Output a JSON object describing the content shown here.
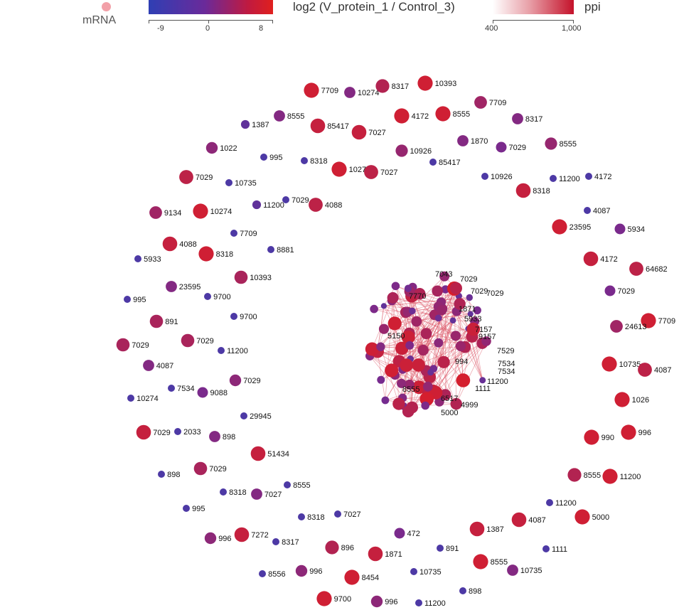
{
  "legend": {
    "mrna_label": "mRNA",
    "color_scale_title": "log2 (V_protein_1 / Control_3)",
    "color_ticks": [
      "-9",
      "0",
      "8"
    ],
    "ppi_title": "ppi",
    "ppi_ticks": [
      "400",
      "1,000"
    ]
  },
  "colors": {
    "low": "#3a3fb0",
    "mid": "#7a2a8c",
    "high": "#d81e2a",
    "edge": "#d94a5a"
  },
  "nodes": [
    {
      "id": "7709",
      "c": 0.95
    },
    {
      "id": "10274",
      "c": 0.55
    },
    {
      "id": "8317",
      "c": 0.8
    },
    {
      "id": "10393",
      "c": 0.95
    },
    {
      "id": "7709",
      "c": 0.7
    },
    {
      "id": "8317",
      "c": 0.55
    },
    {
      "id": "1387",
      "c": 0.3
    },
    {
      "id": "8555",
      "c": 0.55
    },
    {
      "id": "85417",
      "c": 0.9
    },
    {
      "id": "7027",
      "c": 0.9
    },
    {
      "id": "4172",
      "c": 0.95
    },
    {
      "id": "8555",
      "c": 0.95
    },
    {
      "id": "1870",
      "c": 0.55
    },
    {
      "id": "7029",
      "c": 0.5
    },
    {
      "id": "8555",
      "c": 0.65
    },
    {
      "id": "1022",
      "c": 0.6
    },
    {
      "id": "995",
      "c": 0.15
    },
    {
      "id": "8318",
      "c": 0.15
    },
    {
      "id": "1027",
      "c": 0.95
    },
    {
      "id": "7027",
      "c": 0.85
    },
    {
      "id": "10926",
      "c": 0.65
    },
    {
      "id": "85417",
      "c": 0.15
    },
    {
      "id": "10926",
      "c": 0.15
    },
    {
      "id": "11200",
      "c": 0.15
    },
    {
      "id": "4172",
      "c": 0.15
    },
    {
      "id": "7029",
      "c": 0.85
    },
    {
      "id": "10735",
      "c": 0.15
    },
    {
      "id": "11200",
      "c": 0.3
    },
    {
      "id": "7029",
      "c": 0.15
    },
    {
      "id": "4088",
      "c": 0.85
    },
    {
      "id": "8318",
      "c": 0.9
    },
    {
      "id": "9134",
      "c": 0.7
    },
    {
      "id": "10274",
      "c": 0.95
    },
    {
      "id": "4087",
      "c": 0.15
    },
    {
      "id": "23595",
      "c": 0.95
    },
    {
      "id": "5934",
      "c": 0.5
    },
    {
      "id": "7709",
      "c": 0.15
    },
    {
      "id": "4088",
      "c": 0.9
    },
    {
      "id": "8318",
      "c": 0.95
    },
    {
      "id": "8881",
      "c": 0.15
    },
    {
      "id": "5933",
      "c": 0.15
    },
    {
      "id": "4172",
      "c": 0.9
    },
    {
      "id": "64682",
      "c": 0.85
    },
    {
      "id": "10393",
      "c": 0.75
    },
    {
      "id": "23595",
      "c": 0.55
    },
    {
      "id": "9700",
      "c": 0.15
    },
    {
      "id": "995",
      "c": 0.15
    },
    {
      "id": "7029",
      "c": 0.5
    },
    {
      "id": "9700",
      "c": 0.15
    },
    {
      "id": "891",
      "c": 0.75
    },
    {
      "id": "7709",
      "c": 0.95
    },
    {
      "id": "24613",
      "c": 0.7
    },
    {
      "id": "7029",
      "c": 0.75
    },
    {
      "id": "7029",
      "c": 0.75
    },
    {
      "id": "11200",
      "c": 0.15
    },
    {
      "id": "4087",
      "c": 0.55
    },
    {
      "id": "10735",
      "c": 0.95
    },
    {
      "id": "4087",
      "c": 0.85
    },
    {
      "id": "7029",
      "c": 0.6
    },
    {
      "id": "7534",
      "c": 0.15
    },
    {
      "id": "9088",
      "c": 0.5
    },
    {
      "id": "10274",
      "c": 0.15
    },
    {
      "id": "1026",
      "c": 0.95
    },
    {
      "id": "29945",
      "c": 0.15
    },
    {
      "id": "7029",
      "c": 0.9
    },
    {
      "id": "2033",
      "c": 0.15
    },
    {
      "id": "898",
      "c": 0.55
    },
    {
      "id": "990",
      "c": 0.95
    },
    {
      "id": "996",
      "c": 0.95
    },
    {
      "id": "51434",
      "c": 0.9
    },
    {
      "id": "898",
      "c": 0.15
    },
    {
      "id": "7029",
      "c": 0.75
    },
    {
      "id": "8555",
      "c": 0.8
    },
    {
      "id": "11200",
      "c": 0.95
    },
    {
      "id": "8318",
      "c": 0.15
    },
    {
      "id": "7027",
      "c": 0.55
    },
    {
      "id": "8555",
      "c": 0.15
    },
    {
      "id": "995",
      "c": 0.15
    },
    {
      "id": "11200",
      "c": 0.15
    },
    {
      "id": "5000",
      "c": 0.95
    },
    {
      "id": "8318",
      "c": 0.15
    },
    {
      "id": "7027",
      "c": 0.15
    },
    {
      "id": "4087",
      "c": 0.9
    },
    {
      "id": "996",
      "c": 0.6
    },
    {
      "id": "7272",
      "c": 0.9
    },
    {
      "id": "8317",
      "c": 0.15
    },
    {
      "id": "472",
      "c": 0.5
    },
    {
      "id": "1387",
      "c": 0.9
    },
    {
      "id": "896",
      "c": 0.8
    },
    {
      "id": "1871",
      "c": 0.9
    },
    {
      "id": "891",
      "c": 0.15
    },
    {
      "id": "1111",
      "c": 0.15
    },
    {
      "id": "8556",
      "c": 0.15
    },
    {
      "id": "996",
      "c": 0.6
    },
    {
      "id": "8454",
      "c": 0.95
    },
    {
      "id": "10735",
      "c": 0.15
    },
    {
      "id": "8555",
      "c": 0.95
    },
    {
      "id": "10735",
      "c": 0.55
    },
    {
      "id": "898",
      "c": 0.15
    },
    {
      "id": "9700",
      "c": 0.95
    },
    {
      "id": "996",
      "c": 0.6
    },
    {
      "id": "11200",
      "c": 0.15
    }
  ],
  "cluster": {
    "labels": [
      "7043",
      "7029",
      "7029",
      "7029",
      "7770",
      "1871",
      "5933",
      "7157",
      "9157",
      "7529",
      "7534",
      "7534",
      "11200",
      "1111",
      "4999",
      "5000",
      "8555",
      "5150",
      "6517",
      "994"
    ]
  }
}
